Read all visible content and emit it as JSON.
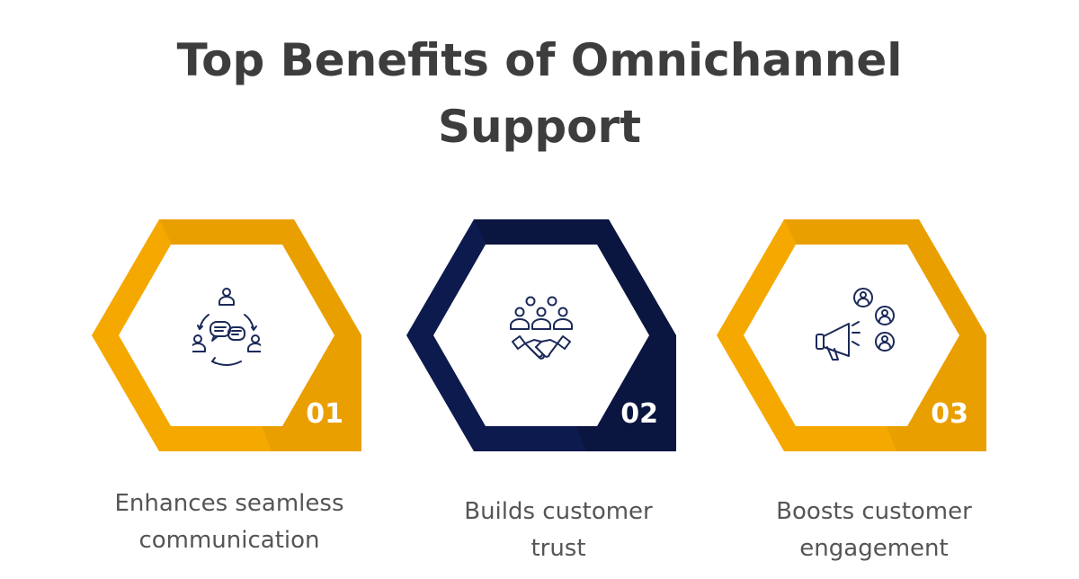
{
  "title": {
    "line1": "Top Benefits of Omnichannel",
    "line2": "Support"
  },
  "colors": {
    "gold": "#f5a800",
    "navy": "#0d1a4d",
    "icon_stroke": "#1c2a5a",
    "text_dark": "#3d3d3d",
    "text_caption": "#555555"
  },
  "benefits": [
    {
      "number": "01",
      "caption_line1": "Enhances seamless",
      "caption_line2": "communication",
      "icon": "team-communication-icon",
      "color": "gold"
    },
    {
      "number": "02",
      "caption_line1": "Builds customer",
      "caption_line2": "trust",
      "icon": "handshake-group-icon",
      "color": "navy"
    },
    {
      "number": "03",
      "caption_line1": "Boosts customer",
      "caption_line2": "engagement",
      "icon": "megaphone-users-icon",
      "color": "gold"
    }
  ]
}
